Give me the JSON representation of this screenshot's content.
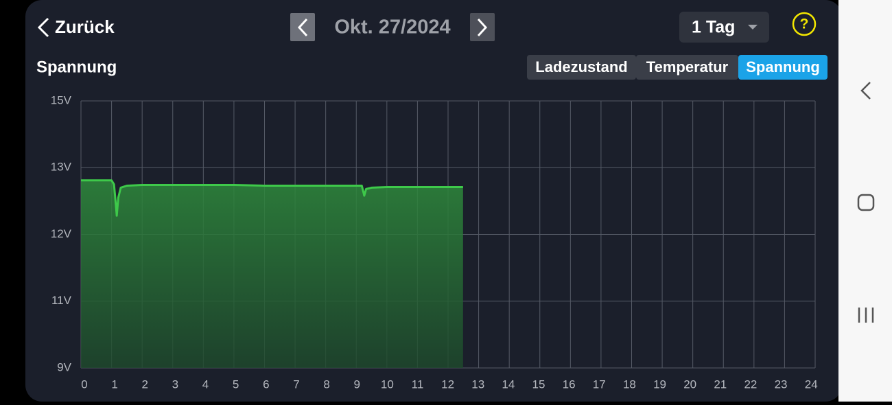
{
  "header": {
    "back": "Zurück",
    "date": "Okt. 27/2024",
    "range": "1 Tag",
    "help": "?"
  },
  "section_title": "Spannung",
  "tabs": [
    "Ladezustand",
    "Temperatur",
    "Spannung"
  ],
  "active_tab": 2,
  "chart_data": {
    "type": "line",
    "x": [
      0,
      0.5,
      1.0,
      1.08,
      1.14,
      1.17,
      1.22,
      1.3,
      1.5,
      2,
      3,
      4,
      5,
      6,
      7,
      8,
      9,
      9.18,
      9.24,
      9.26,
      9.32,
      9.5,
      10,
      11,
      12,
      12.49
    ],
    "series": [
      {
        "color": "#3ec94a",
        "values": [
          12.81,
          12.81,
          12.81,
          12.75,
          12.45,
          12.28,
          12.55,
          12.7,
          12.73,
          12.74,
          12.74,
          12.74,
          12.74,
          12.73,
          12.73,
          12.73,
          12.73,
          12.73,
          12.62,
          12.58,
          12.68,
          12.7,
          12.71,
          12.71,
          12.71,
          12.71
        ]
      }
    ],
    "xlim": [
      0,
      24
    ],
    "xticks": [
      0,
      1,
      2,
      3,
      4,
      5,
      6,
      7,
      8,
      9,
      10,
      11,
      12,
      13,
      14,
      15,
      16,
      17,
      18,
      19,
      20,
      21,
      22,
      23,
      24
    ],
    "ylim": [
      9,
      15
    ],
    "yticks": [
      {
        "value": 15,
        "label": "15V"
      },
      {
        "value": 13,
        "label": "13V"
      },
      {
        "value": 12,
        "label": "12V"
      },
      {
        "value": 11,
        "label": "11V"
      },
      {
        "value": 9,
        "label": "9V"
      }
    ],
    "grid": true,
    "area": true
  }
}
